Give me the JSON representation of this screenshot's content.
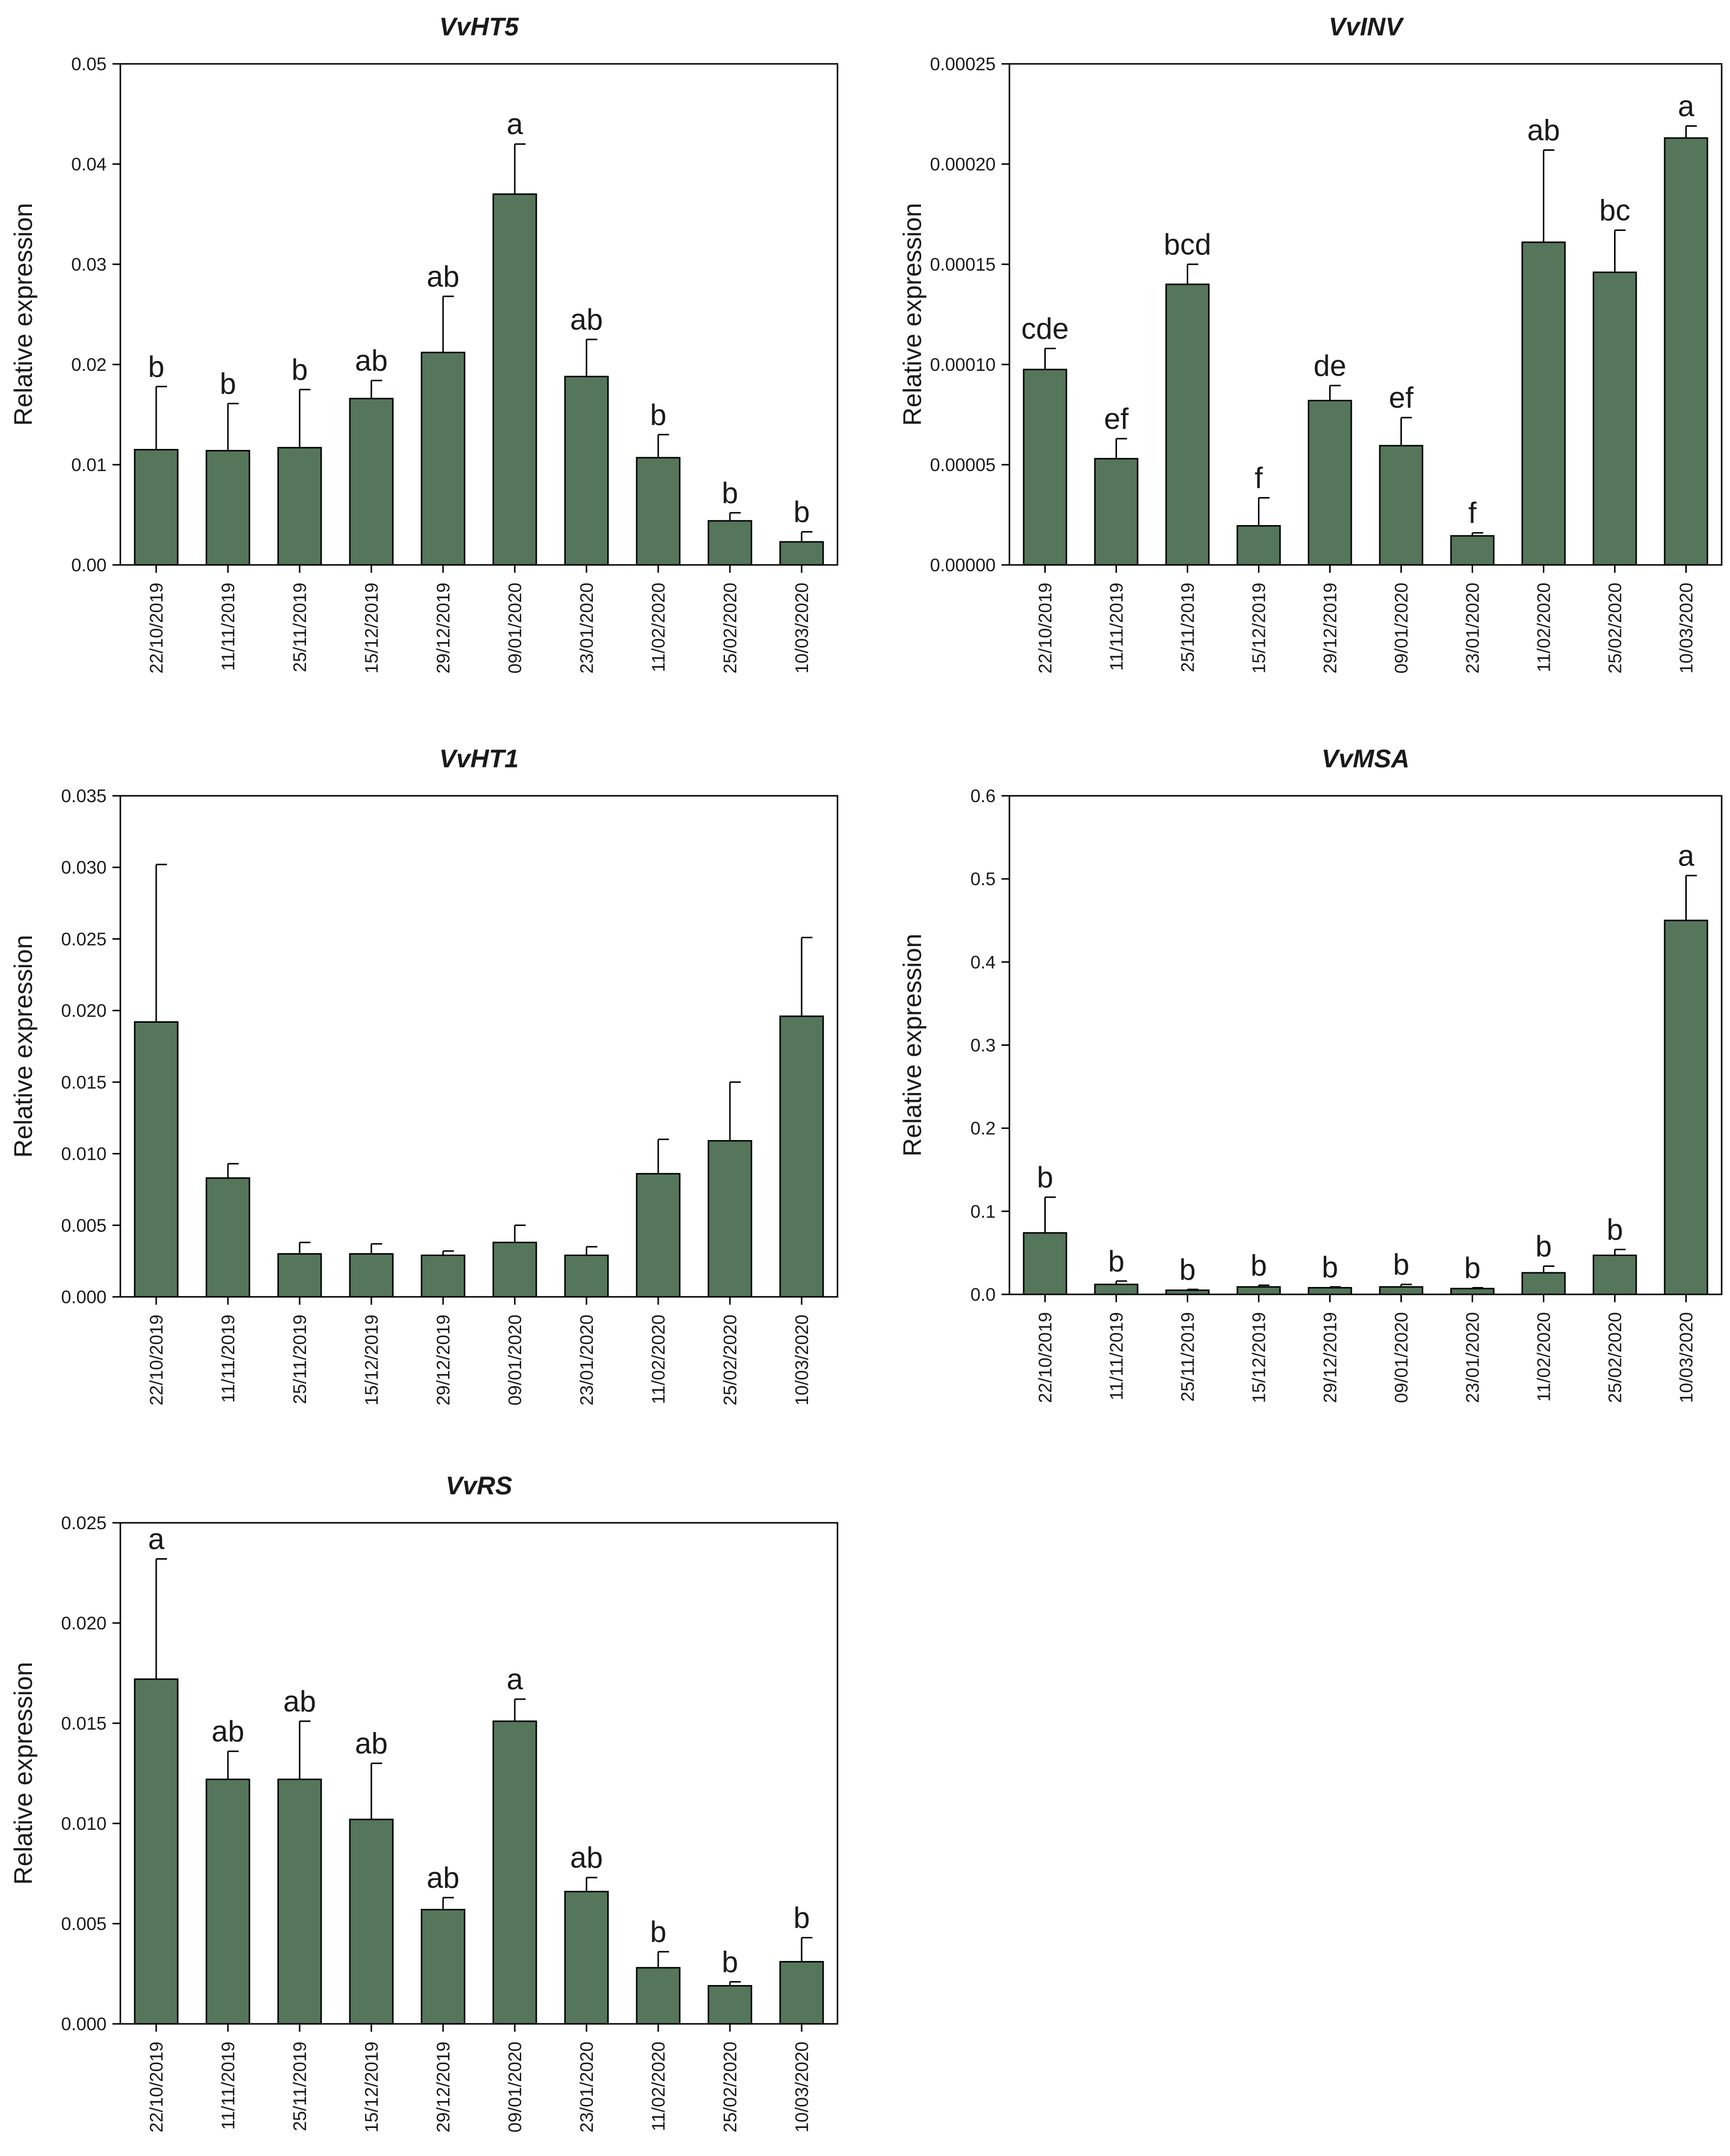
{
  "colors": {
    "bar": "#55765a",
    "axis": "#000000"
  },
  "chart_data": [
    {
      "type": "bar",
      "title": "VvHT5",
      "ylabel": "Relative expression",
      "xlabel": "",
      "ylim": [
        0,
        0.05
      ],
      "yticks": [
        "0.00",
        "0.01",
        "0.02",
        "0.03",
        "0.04",
        "0.05"
      ],
      "categories": [
        "22/10/2019",
        "11/11/2019",
        "25/11/2019",
        "15/12/2019",
        "29/12/2019",
        "09/01/2020",
        "23/01/2020",
        "11/02/2020",
        "25/02/2020",
        "10/03/2020"
      ],
      "values": [
        0.0115,
        0.0114,
        0.0117,
        0.0166,
        0.0212,
        0.037,
        0.0188,
        0.0107,
        0.0044,
        0.0023
      ],
      "errors": [
        0.0063,
        0.0047,
        0.0058,
        0.0018,
        0.0056,
        0.005,
        0.0037,
        0.0023,
        0.0008,
        0.001
      ],
      "letters": [
        "b",
        "b",
        "b",
        "ab",
        "ab",
        "a",
        "ab",
        "b",
        "b",
        "b"
      ]
    },
    {
      "type": "bar",
      "title": "VvINV",
      "ylabel": "Relative expression",
      "xlabel": "",
      "ylim": [
        0,
        0.00025
      ],
      "yticks": [
        "0.00000",
        "0.00005",
        "0.00010",
        "0.00015",
        "0.00020",
        "0.00025"
      ],
      "categories": [
        "22/10/2019",
        "11/11/2019",
        "25/11/2019",
        "15/12/2019",
        "29/12/2019",
        "09/01/2020",
        "23/01/2020",
        "11/02/2020",
        "25/02/2020",
        "10/03/2020"
      ],
      "values": [
        9.75e-05,
        5.3e-05,
        0.00014,
        1.95e-05,
        8.2e-05,
        5.95e-05,
        1.45e-05,
        0.000161,
        0.000146,
        0.000213
      ],
      "errors": [
        1.05e-05,
        1e-05,
        1e-05,
        1.4e-05,
        7.5e-06,
        1.4e-05,
        1.5e-06,
        4.6e-05,
        2.1e-05,
        6e-06
      ],
      "letters": [
        "cde",
        "ef",
        "bcd",
        "f",
        "de",
        "ef",
        "f",
        "ab",
        "bc",
        "a"
      ]
    },
    {
      "type": "bar",
      "title": "VvHT1",
      "ylabel": "Relative expression",
      "xlabel": "",
      "ylim": [
        0,
        0.035
      ],
      "yticks": [
        "0.000",
        "0.005",
        "0.010",
        "0.015",
        "0.020",
        "0.025",
        "0.030",
        "0.035"
      ],
      "categories": [
        "22/10/2019",
        "11/11/2019",
        "25/11/2019",
        "15/12/2019",
        "29/12/2019",
        "09/01/2020",
        "23/01/2020",
        "11/02/2020",
        "25/02/2020",
        "10/03/2020"
      ],
      "values": [
        0.0192,
        0.0083,
        0.003,
        0.003,
        0.0029,
        0.0038,
        0.0029,
        0.0086,
        0.0109,
        0.0196
      ],
      "errors": [
        0.011,
        0.001,
        0.0008,
        0.0007,
        0.0003,
        0.0012,
        0.0006,
        0.0024,
        0.0041,
        0.0055
      ],
      "letters": [
        "",
        "",
        "",
        "",
        "",
        "",
        "",
        "",
        "",
        ""
      ]
    },
    {
      "type": "bar",
      "title": "VvMSA",
      "ylabel": "Relative expression",
      "xlabel": "",
      "ylim": [
        0,
        0.6
      ],
      "yticks": [
        "0.0",
        "0.1",
        "0.2",
        "0.3",
        "0.4",
        "0.5",
        "0.6"
      ],
      "categories": [
        "22/10/2019",
        "11/11/2019",
        "25/11/2019",
        "15/12/2019",
        "29/12/2019",
        "09/01/2020",
        "23/01/2020",
        "11/02/2020",
        "25/02/2020",
        "10/03/2020"
      ],
      "values": [
        0.074,
        0.012,
        0.005,
        0.009,
        0.008,
        0.009,
        0.007,
        0.026,
        0.047,
        0.45
      ],
      "errors": [
        0.043,
        0.004,
        0.001,
        0.002,
        0.001,
        0.003,
        0.001,
        0.008,
        0.007,
        0.054
      ],
      "letters": [
        "b",
        "b",
        "b",
        "b",
        "b",
        "b",
        "b",
        "b",
        "b",
        "a"
      ]
    },
    {
      "type": "bar",
      "title": "VvRS",
      "ylabel": "Relative expression",
      "xlabel": "",
      "ylim": [
        0,
        0.025
      ],
      "yticks": [
        "0.000",
        "0.005",
        "0.010",
        "0.015",
        "0.020",
        "0.025"
      ],
      "categories": [
        "22/10/2019",
        "11/11/2019",
        "25/11/2019",
        "15/12/2019",
        "29/12/2019",
        "09/01/2020",
        "23/01/2020",
        "11/02/2020",
        "25/02/2020",
        "10/03/2020"
      ],
      "values": [
        0.0172,
        0.0122,
        0.0122,
        0.0102,
        0.0057,
        0.0151,
        0.0066,
        0.0028,
        0.0019,
        0.0031
      ],
      "errors": [
        0.006,
        0.0014,
        0.0029,
        0.0028,
        0.0006,
        0.0011,
        0.0007,
        0.0008,
        0.0002,
        0.0012
      ],
      "letters": [
        "a",
        "ab",
        "ab",
        "ab",
        "ab",
        "a",
        "ab",
        "b",
        "b",
        "b"
      ]
    }
  ]
}
